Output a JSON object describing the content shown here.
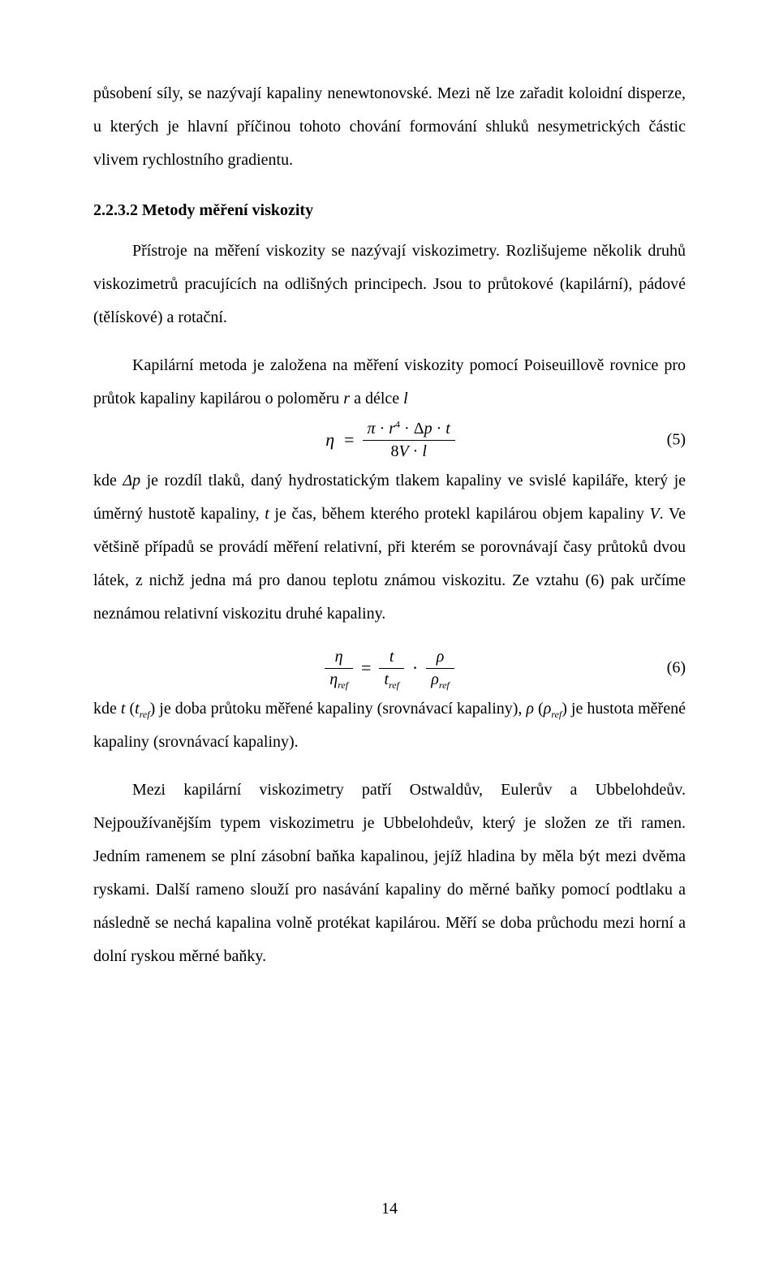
{
  "colors": {
    "background": "#ffffff",
    "text": "#000000",
    "rule": "#000000"
  },
  "typography": {
    "body_font_family": "Times New Roman",
    "body_font_size_pt": 12,
    "heading_weight": "bold",
    "line_height": 2.05,
    "text_align": "justify"
  },
  "page_number": "14",
  "paragraphs": {
    "p1": "působení síly, se nazývají kapaliny nenewtonovské. Mezi ně lze zařadit koloidní disperze, u kterých je hlavní příčinou tohoto chování formování shluků nesymetrických částic vlivem rychlostního gradientu.",
    "h1": "2.2.3.2 Metody měření viskozity",
    "p2": "Přístroje na měření viskozity se nazývají viskozimetry. Rozlišujeme několik druhů viskozimetrů pracujících na odlišných principech. Jsou to průtokové (kapilární), pádové (tělískové) a rotační.",
    "p3_a": "Kapilární metoda je založena na měření viskozity pomocí Poiseuillově rovnice pro průtok kapaliny kapilárou o poloměru ",
    "p3_r": "r",
    "p3_b": " a délce ",
    "p3_l": "l",
    "p4_a": "kde ",
    "p4_dp": "Δp",
    "p4_b": " je rozdíl tlaků, daný hydrostatickým tlakem kapaliny ve svislé kapiláře, který je úměrný hustotě kapaliny, ",
    "p4_t": "t",
    "p4_c": " je čas, během kterého protekl kapilárou objem kapaliny ",
    "p4_V": "V",
    "p4_d": ". Ve většině případů se provádí měření relativní, při kterém se porovnávají časy průtoků dvou látek, z nichž jedna má pro danou teplotu známou viskozitu. Ze vztahu (6) pak určíme neznámou relativní viskozitu druhé kapaliny.",
    "p5_a": "kde ",
    "p5_parts": {
      "t": "t",
      "open": " (",
      "tref_t": "t",
      "tref_sub": "ref",
      "close_b": ") je doba průtoku měřené kapaliny (srovnávací kapaliny), ",
      "rho": "ρ",
      "open2": " (",
      "rhoref_r": "ρ",
      "rhoref_sub": "ref",
      "close_end": ") je hustota měřené kapaliny (srovnávací kapaliny)."
    },
    "p6": "Mezi kapilární viskozimetry patří Ostwaldův, Eulerův a Ubbelohdeův. Nejpoužívanějším typem viskozimetru je Ubbelohdeův, který je složen ze tři ramen. Jedním ramenem se plní zásobní baňka kapalinou, jejíž hladina by měla být mezi dvěma ryskami. Další rameno slouží pro nasávání kapaliny do měrné baňky pomocí podtlaku a následně se nechá kapalina volně protékat kapilárou. Měří se doba průchodu mezi horní a dolní ryskou měrné baňky."
  },
  "equations": {
    "eq5": {
      "number": "(5)",
      "lhs_eta": "η",
      "eq": "=",
      "num": {
        "pi": "π",
        "dot1": " · ",
        "r": "r",
        "sup4": "4",
        "dot2": " · Δ",
        "p": "p",
        "dot3": " · ",
        "t": "t"
      },
      "den": {
        "eight": "8",
        "V": "V",
        "dot": " · ",
        "l": "l"
      }
    },
    "eq6": {
      "number": "(6)",
      "lhs": {
        "num_eta": "η",
        "den_eta": "η",
        "den_sub": "ref"
      },
      "eq": "=",
      "mid": {
        "num_t": "t",
        "den_t": "t",
        "den_sub": "ref"
      },
      "dot": "·",
      "rhs": {
        "num_rho": "ρ",
        "den_rho": "ρ",
        "den_sub": "ref"
      }
    }
  }
}
